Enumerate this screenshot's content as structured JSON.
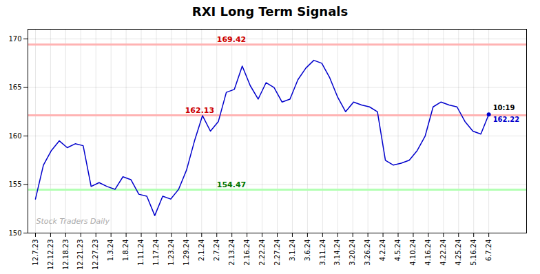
{
  "chart_data": {
    "type": "line",
    "title": "RXI Long Term Signals",
    "color": "#0000cc",
    "x": [
      0,
      1,
      2,
      3,
      4,
      5,
      6,
      7,
      8,
      9,
      10,
      11,
      12,
      13,
      14,
      15,
      16,
      17,
      18,
      19,
      20,
      21,
      22,
      23,
      24,
      25,
      26,
      27,
      28,
      29,
      30,
      31,
      32,
      33,
      34,
      35,
      36,
      37,
      38,
      39,
      40,
      41,
      42,
      43,
      44,
      45,
      46,
      47,
      48,
      49,
      50,
      51,
      52,
      53,
      54,
      55,
      56,
      57
    ],
    "values": [
      153.5,
      157.0,
      158.5,
      159.5,
      158.8,
      159.2,
      159.0,
      154.8,
      155.2,
      154.8,
      154.5,
      155.8,
      155.5,
      154.0,
      153.8,
      151.8,
      153.8,
      153.5,
      154.5,
      156.5,
      159.5,
      162.1,
      160.5,
      161.5,
      164.5,
      164.8,
      167.2,
      165.2,
      163.8,
      165.5,
      165.0,
      163.5,
      163.8,
      165.8,
      167.0,
      167.8,
      167.5,
      166.0,
      164.0,
      162.5,
      163.5,
      163.2,
      163.0,
      162.5,
      157.5,
      157.0,
      157.2,
      157.5,
      158.5,
      160.0,
      163.0,
      163.5,
      163.2,
      163.0,
      161.5,
      160.5,
      160.2,
      162.22
    ],
    "xlim": [
      -0.95,
      61.75
    ],
    "xticks": [
      {
        "value": 0,
        "label": "12.7.23"
      },
      {
        "value": 1.9,
        "label": "12.12.23"
      },
      {
        "value": 3.8,
        "label": "12.18.23"
      },
      {
        "value": 5.7,
        "label": "12.21.23"
      },
      {
        "value": 7.6,
        "label": "12.27.23"
      },
      {
        "value": 9.5,
        "label": "1.3.24"
      },
      {
        "value": 11.4,
        "label": "1.8.24"
      },
      {
        "value": 13.3,
        "label": "1.11.24"
      },
      {
        "value": 15.2,
        "label": "1.17.24"
      },
      {
        "value": 17.1,
        "label": "1.23.24"
      },
      {
        "value": 19,
        "label": "1.29.24"
      },
      {
        "value": 20.9,
        "label": "2.1.24"
      },
      {
        "value": 22.8,
        "label": "2.7.24"
      },
      {
        "value": 24.7,
        "label": "2.13.24"
      },
      {
        "value": 26.6,
        "label": "2.16.24"
      },
      {
        "value": 28.5,
        "label": "2.22.24"
      },
      {
        "value": 30.4,
        "label": "2.27.24"
      },
      {
        "value": 32.3,
        "label": "3.1.24"
      },
      {
        "value": 34.2,
        "label": "3.6.24"
      },
      {
        "value": 36.1,
        "label": "3.11.24"
      },
      {
        "value": 38,
        "label": "3.14.24"
      },
      {
        "value": 39.9,
        "label": "3.20.24"
      },
      {
        "value": 41.8,
        "label": "3.26.24"
      },
      {
        "value": 43.7,
        "label": "4.2.24"
      },
      {
        "value": 45.6,
        "label": "4.5.24"
      },
      {
        "value": 47.5,
        "label": "4.10.24"
      },
      {
        "value": 49.4,
        "label": "4.16.24"
      },
      {
        "value": 51.3,
        "label": "4.22.24"
      },
      {
        "value": 53.2,
        "label": "4.25.24"
      },
      {
        "value": 55.1,
        "label": "5.16.24"
      },
      {
        "value": 57,
        "label": "6.7.24"
      }
    ],
    "ylim": [
      150,
      171
    ],
    "yticks": [
      150,
      155,
      160,
      165,
      170
    ],
    "grid": true,
    "hlines": [
      {
        "value": 169.42,
        "label": "169.42",
        "color": "#ffb3b3",
        "label_color": "#cc0000"
      },
      {
        "value": 162.13,
        "label": "162.13",
        "color": "#ffb3b3",
        "label_color": "#cc0000"
      },
      {
        "value": 154.47,
        "label": "154.47",
        "color": "#b3ffb3",
        "label_color": "#007700"
      }
    ],
    "last_point": {
      "label": "10:19",
      "value": 162.22,
      "value_label": "162.22",
      "color": "#0000cc"
    },
    "watermark": "Stock Traders Daily"
  }
}
